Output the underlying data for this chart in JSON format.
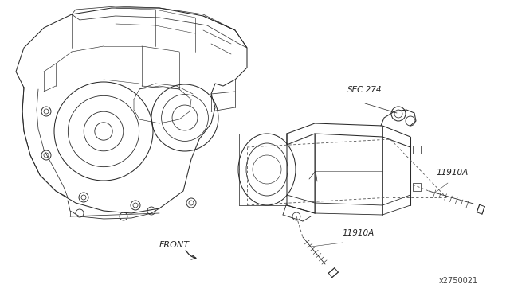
{
  "background_color": "#ffffff",
  "line_color": "#2a2a2a",
  "text_color": "#222222",
  "labels": {
    "sec274": "SEC.274",
    "bolt1": "11910A",
    "bolt2": "11910A",
    "front": "FRONT",
    "diagram_num": "x2750021"
  },
  "fig_width": 6.4,
  "fig_height": 3.72,
  "dpi": 100
}
